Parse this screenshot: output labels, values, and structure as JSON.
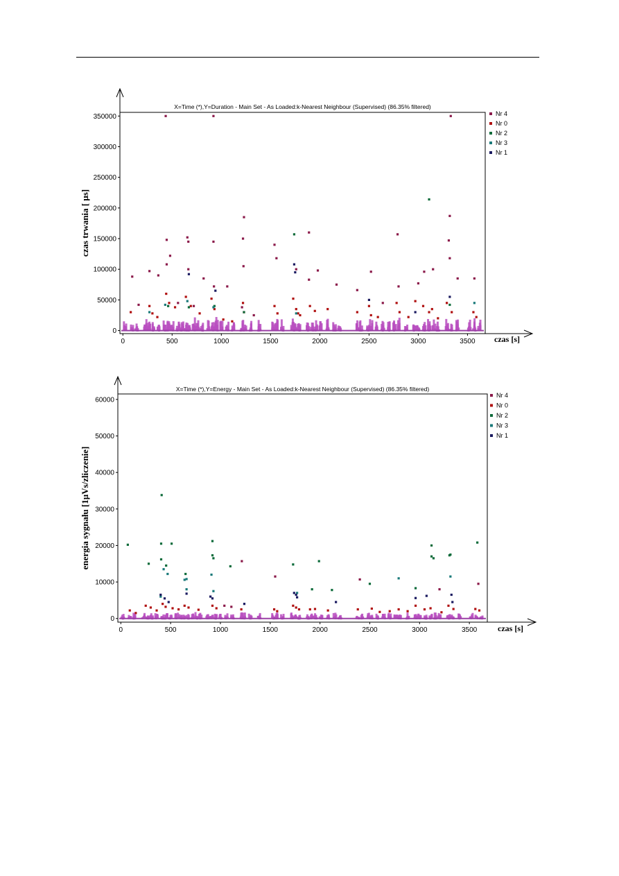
{
  "chart_data": [
    {
      "type": "scatter",
      "title": "X=Time (*),Y=Duration - Main Set - As Loaded:k-Nearest Neighbour (Supervised) (86.35% filtered)",
      "xlabel": "czas [s]",
      "ylabel": "czas trwania [ μs]",
      "xlim": [
        -30,
        3680
      ],
      "ylim": [
        -5000,
        356000
      ],
      "xticks": [
        0,
        500,
        1000,
        1500,
        2000,
        2500,
        3000,
        3500
      ],
      "yticks": [
        0,
        50000,
        100000,
        150000,
        200000,
        250000,
        300000,
        350000
      ],
      "xtick_labels": [
        "0",
        "500",
        "1000",
        "1500",
        "2000",
        "2500",
        "3000",
        "3500"
      ],
      "ytick_labels": [
        "0",
        "50000",
        "100000",
        "150000",
        "200000",
        "250000",
        "300000",
        "350000"
      ],
      "legend": [
        {
          "name": "Nr 4",
          "color": "#8b1a4a"
        },
        {
          "name": "Nr 0",
          "color": "#b01010"
        },
        {
          "name": "Nr 2",
          "color": "#0d6b3a"
        },
        {
          "name": "Nr 3",
          "color": "#1a7a7a"
        },
        {
          "name": "Nr 1",
          "color": "#1a1a60"
        }
      ],
      "legend_position": "right",
      "series": [
        {
          "name": "Nr 4",
          "color": "#8b1a4a",
          "points": [
            [
              435,
              350000
            ],
            [
              920,
              350000
            ],
            [
              3330,
              350000
            ],
            [
              1230,
              185000
            ],
            [
              3320,
              187000
            ],
            [
              655,
              152000
            ],
            [
              3310,
              147000
            ],
            [
              920,
              145000
            ],
            [
              1540,
              140000
            ],
            [
              1890,
              160000
            ],
            [
              2790,
              157000
            ],
            [
              445,
              148000
            ],
            [
              1220,
              150000
            ],
            [
              665,
              145000
            ],
            [
              480,
              122000
            ],
            [
              1560,
              118000
            ],
            [
              3320,
              118000
            ],
            [
              445,
              108000
            ],
            [
              1225,
              105000
            ],
            [
              665,
              100000
            ],
            [
              270,
              97000
            ],
            [
              1980,
              98000
            ],
            [
              2520,
              96000
            ],
            [
              3150,
              100000
            ],
            [
              3060,
              96000
            ],
            [
              95,
              88000
            ],
            [
              360,
              90000
            ],
            [
              820,
              85000
            ],
            [
              3400,
              85000
            ],
            [
              3570,
              85000
            ],
            [
              1760,
              100000
            ],
            [
              1890,
              83000
            ],
            [
              3000,
              77000
            ],
            [
              2800,
              72000
            ],
            [
              925,
              72000
            ],
            [
              1060,
              72000
            ],
            [
              2170,
              75000
            ],
            [
              2380,
              66000
            ],
            [
              2640,
              45000
            ],
            [
              1210,
              38000
            ],
            [
              1330,
              25000
            ],
            [
              560,
              45000
            ],
            [
              720,
              40000
            ],
            [
              160,
              42000
            ]
          ]
        },
        {
          "name": "Nr 0",
          "color": "#b01010",
          "points": [
            [
              440,
              60000
            ],
            [
              470,
              45000
            ],
            [
              530,
              38000
            ],
            [
              640,
              55000
            ],
            [
              690,
              40000
            ],
            [
              900,
              52000
            ],
            [
              930,
              35000
            ],
            [
              1220,
              45000
            ],
            [
              1230,
              30000
            ],
            [
              1540,
              40000
            ],
            [
              1570,
              28000
            ],
            [
              1730,
              52000
            ],
            [
              1760,
              35000
            ],
            [
              1780,
              28000
            ],
            [
              1900,
              40000
            ],
            [
              1950,
              32000
            ],
            [
              2080,
              35000
            ],
            [
              2380,
              30000
            ],
            [
              2500,
              40000
            ],
            [
              2520,
              25000
            ],
            [
              2780,
              45000
            ],
            [
              2810,
              30000
            ],
            [
              2970,
              48000
            ],
            [
              3050,
              40000
            ],
            [
              3110,
              30000
            ],
            [
              3140,
              35000
            ],
            [
              3290,
              45000
            ],
            [
              3340,
              30000
            ],
            [
              3560,
              30000
            ],
            [
              3590,
              22000
            ],
            [
              270,
              40000
            ],
            [
              300,
              28000
            ],
            [
              80,
              30000
            ],
            [
              1800,
              25000
            ],
            [
              2590,
              22000
            ],
            [
              2900,
              22000
            ],
            [
              3200,
              20000
            ],
            [
              350,
              22000
            ],
            [
              780,
              28000
            ],
            [
              1020,
              18000
            ],
            [
              1110,
              15000
            ]
          ]
        },
        {
          "name": "Nr 2",
          "color": "#0d6b3a",
          "points": [
            [
              1740,
              157000
            ],
            [
              3110,
              214000
            ],
            [
              460,
              40000
            ],
            [
              670,
              38000
            ],
            [
              930,
              40000
            ],
            [
              1230,
              30000
            ],
            [
              3320,
              42000
            ]
          ]
        },
        {
          "name": "Nr 3",
          "color": "#1a7a7a",
          "points": [
            [
              430,
              42000
            ],
            [
              655,
              48000
            ],
            [
              920,
              38000
            ],
            [
              3570,
              45000
            ],
            [
              1760,
              28000
            ],
            [
              270,
              30000
            ]
          ]
        },
        {
          "name": "Nr 1",
          "color": "#1a1a60",
          "points": [
            [
              1740,
              108000
            ],
            [
              1750,
              95000
            ],
            [
              670,
              92000
            ],
            [
              940,
              65000
            ],
            [
              2500,
              50000
            ],
            [
              3320,
              55000
            ],
            [
              2970,
              30000
            ]
          ]
        }
      ]
    },
    {
      "type": "scatter",
      "title": "X=Time (*),Y=Energy - Main Set - As Loaded:k-Nearest Neighbour (Supervised) (86.35% filtered)",
      "xlabel": "czas [s]",
      "ylabel": "energia sygnału [1μVs/zliczenie]",
      "xlim": [
        -30,
        3680
      ],
      "ylim": [
        -1000,
        61500
      ],
      "xticks": [
        0,
        500,
        1000,
        1500,
        2000,
        2500,
        3000,
        3500
      ],
      "yticks": [
        0,
        10000,
        20000,
        30000,
        40000,
        50000,
        60000
      ],
      "xtick_labels": [
        "0",
        "500",
        "1000",
        "1500",
        "2000",
        "2500",
        "3000",
        "3500"
      ],
      "ytick_labels": [
        "0",
        "10000",
        "20000",
        "30000",
        "40000",
        "50000",
        "60000"
      ],
      "legend": [
        {
          "name": "Nr 4",
          "color": "#8b1a4a"
        },
        {
          "name": "Nr 0",
          "color": "#b01010"
        },
        {
          "name": "Nr 2",
          "color": "#0d6b3a"
        },
        {
          "name": "Nr 3",
          "color": "#1a7a7a"
        },
        {
          "name": "Nr 1",
          "color": "#1a1a60"
        }
      ],
      "legend_position": "right",
      "series": [
        {
          "name": "Nr 4",
          "color": "#8b1a4a",
          "points": [
            [
              1215,
              15700
            ],
            [
              1550,
              11500
            ],
            [
              2400,
              10700
            ],
            [
              3200,
              8000
            ],
            [
              3590,
              9500
            ],
            [
              1040,
              3500
            ],
            [
              1110,
              3200
            ]
          ]
        },
        {
          "name": "Nr 0",
          "color": "#b01010",
          "points": [
            [
              90,
              2200
            ],
            [
              250,
              3500
            ],
            [
              300,
              3000
            ],
            [
              420,
              4000
            ],
            [
              450,
              3200
            ],
            [
              520,
              2800
            ],
            [
              580,
              2500
            ],
            [
              640,
              3500
            ],
            [
              680,
              3000
            ],
            [
              780,
              2400
            ],
            [
              920,
              3500
            ],
            [
              960,
              2800
            ],
            [
              1210,
              2500
            ],
            [
              1540,
              2500
            ],
            [
              1570,
              2000
            ],
            [
              1730,
              3500
            ],
            [
              1760,
              3000
            ],
            [
              1790,
              2500
            ],
            [
              1900,
              2500
            ],
            [
              1950,
              2600
            ],
            [
              2080,
              2200
            ],
            [
              2380,
              2500
            ],
            [
              2520,
              2700
            ],
            [
              2790,
              2500
            ],
            [
              2960,
              3500
            ],
            [
              3050,
              2500
            ],
            [
              3110,
              2800
            ],
            [
              3290,
              3500
            ],
            [
              3340,
              2600
            ],
            [
              3560,
              2600
            ],
            [
              3600,
              2200
            ],
            [
              2600,
              1800
            ],
            [
              2700,
              2000
            ],
            [
              2880,
              2000
            ],
            [
              3220,
              1700
            ],
            [
              360,
              2200
            ],
            [
              150,
              1500
            ]
          ]
        },
        {
          "name": "Nr 2",
          "color": "#0d6b3a",
          "points": [
            [
              70,
              20200
            ],
            [
              410,
              33800
            ],
            [
              405,
              20500
            ],
            [
              510,
              20500
            ],
            [
              920,
              21200
            ],
            [
              3120,
              20000
            ],
            [
              3580,
              20800
            ],
            [
              405,
              16200
            ],
            [
              455,
              14500
            ],
            [
              280,
              15000
            ],
            [
              650,
              12200
            ],
            [
              920,
              17300
            ],
            [
              930,
              16500
            ],
            [
              1100,
              14300
            ],
            [
              1730,
              14800
            ],
            [
              1990,
              15700
            ],
            [
              3120,
              17000
            ],
            [
              3140,
              16500
            ],
            [
              3300,
              17300
            ],
            [
              3310,
              17500
            ],
            [
              2500,
              9500
            ],
            [
              2960,
              8300
            ],
            [
              1920,
              8000
            ],
            [
              2120,
              7800
            ]
          ]
        },
        {
          "name": "Nr 3",
          "color": "#1a7a7a",
          "points": [
            [
              430,
              13500
            ],
            [
              470,
              12200
            ],
            [
              640,
              10600
            ],
            [
              660,
              10800
            ],
            [
              910,
              12000
            ],
            [
              2790,
              11000
            ],
            [
              3310,
              11500
            ],
            [
              660,
              8000
            ],
            [
              930,
              7500
            ],
            [
              400,
              6000
            ],
            [
              1770,
              7000
            ]
          ]
        },
        {
          "name": "Nr 1",
          "color": "#1a1a60",
          "points": [
            [
              400,
              6500
            ],
            [
              440,
              5500
            ],
            [
              660,
              6800
            ],
            [
              900,
              6000
            ],
            [
              920,
              5500
            ],
            [
              1240,
              4000
            ],
            [
              1740,
              7000
            ],
            [
              1760,
              6500
            ],
            [
              1770,
              5800
            ],
            [
              2960,
              5600
            ],
            [
              3070,
              6200
            ],
            [
              3320,
              6500
            ],
            [
              3330,
              4500
            ],
            [
              2160,
              4500
            ],
            [
              480,
              4500
            ]
          ]
        }
      ]
    }
  ]
}
